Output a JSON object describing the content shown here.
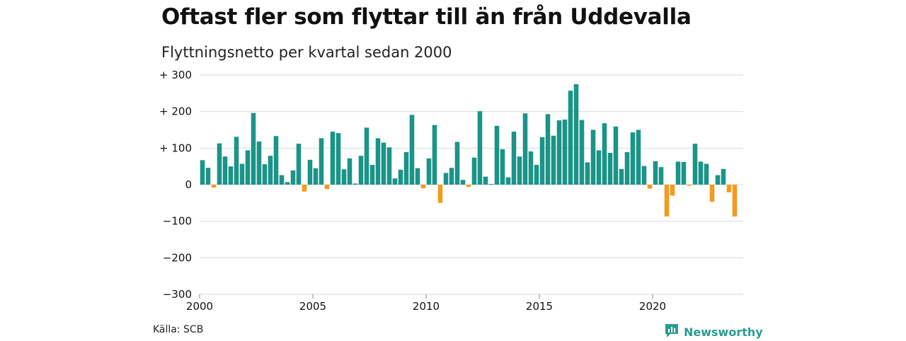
{
  "title": "Oftast fler som flyttar till än från Uddevalla",
  "subtitle": "Flyttningsnetto per kvartal sedan 2000",
  "source": "Källa: SCB",
  "brand": {
    "name": "Newsworthy",
    "icon": "newsworthy-logo-icon"
  },
  "colors": {
    "positive": "#1b9488",
    "negative": "#f29b1d",
    "grid": "#d9d9d9"
  },
  "chart_data": {
    "type": "bar",
    "title": "Oftast fler som flyttar till än från Uddevalla",
    "subtitle": "Flyttningsnetto per kvartal sedan 2000",
    "xlabel": "",
    "ylabel": "",
    "ylim": [
      -300,
      300
    ],
    "xlim": [
      2000,
      2024
    ],
    "grid": true,
    "yticks": [
      300,
      200,
      100,
      0,
      -100,
      -200,
      -300
    ],
    "ytick_labels": [
      "+ 300",
      "+ 200",
      "+ 100",
      "0",
      "−100",
      "−200",
      "−300"
    ],
    "xticks": [
      2000,
      2005,
      2010,
      2015,
      2020
    ],
    "xtick_labels": [
      "2000",
      "2005",
      "2010",
      "2015",
      "2020"
    ],
    "start_year": 2000,
    "values": [
      67,
      46,
      -8,
      113,
      77,
      50,
      131,
      57,
      94,
      196,
      118,
      56,
      79,
      133,
      26,
      7,
      39,
      112,
      -19,
      68,
      45,
      127,
      -12,
      145,
      141,
      42,
      72,
      3,
      79,
      156,
      54,
      127,
      115,
      102,
      17,
      41,
      89,
      191,
      45,
      -10,
      72,
      163,
      -50,
      32,
      46,
      117,
      13,
      -6,
      74,
      201,
      22,
      0,
      161,
      97,
      20,
      145,
      77,
      195,
      91,
      54,
      130,
      193,
      134,
      176,
      178,
      257,
      275,
      177,
      61,
      150,
      94,
      168,
      87,
      159,
      43,
      89,
      143,
      150,
      51,
      -11,
      64,
      48,
      -87,
      -30,
      63,
      62,
      -3,
      112,
      63,
      57,
      -47,
      26,
      43,
      -21,
      -87
    ]
  }
}
